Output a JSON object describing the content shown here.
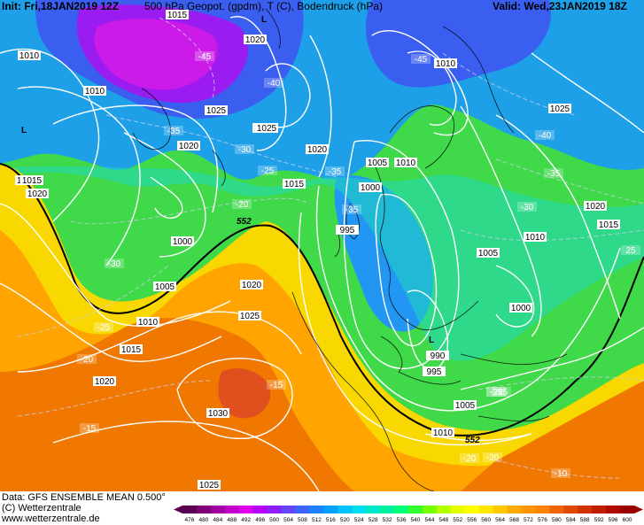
{
  "header": {
    "init": "Init: Fri,18JAN2019 12Z",
    "title": "500 hPa Geopot. (gpdm), T (C), Bodendruck (hPa)",
    "valid": "Valid: Wed,23JAN2019 18Z"
  },
  "map": {
    "pressure_labels": [
      "1015",
      "1020",
      "1010",
      "1015",
      "1020",
      "1010",
      "1025",
      "1005",
      "1020",
      "1015",
      "1000",
      "1005",
      "1010",
      "1015",
      "1020",
      "1025",
      "1030",
      "1025",
      "1005",
      "1010",
      "1000",
      "995",
      "1010",
      "1025",
      "1020",
      "1015",
      "1010",
      "1005",
      "1000",
      "990",
      "995",
      "1005",
      "1010",
      "1020",
      "1015",
      "1025",
      "1020"
    ],
    "temp_labels": [
      "-45",
      "-40",
      "-45",
      "-35",
      "-30",
      "-25",
      "-20",
      "-35",
      "-35",
      "-30",
      "-40",
      "-35",
      "-30",
      "-25",
      "-25",
      "-20",
      "-20",
      "-15",
      "-15",
      "-20",
      "-10",
      "-25",
      "-25",
      "25"
    ],
    "geopot_labels": [
      "552",
      "552"
    ],
    "low_markers": [
      "L",
      "L",
      "L"
    ]
  },
  "footer": {
    "data_source": "Data: GFS ENSEMBLE MEAN 0.500°",
    "copyright": "(C) Wetterzentrale",
    "url": "www.wetterzentrale.de"
  },
  "colorbar": {
    "ticks": [
      "476",
      "480",
      "484",
      "488",
      "492",
      "496",
      "500",
      "504",
      "508",
      "512",
      "516",
      "520",
      "524",
      "528",
      "532",
      "536",
      "540",
      "544",
      "548",
      "552",
      "556",
      "560",
      "564",
      "568",
      "572",
      "576",
      "580",
      "584",
      "588",
      "592",
      "596",
      "600"
    ],
    "colors": [
      "#5a0050",
      "#800078",
      "#a000a0",
      "#c000c8",
      "#e000f0",
      "#b400ff",
      "#8c1eff",
      "#6446ff",
      "#3c64ff",
      "#1e82ff",
      "#00a0ff",
      "#00c3ff",
      "#00dcf0",
      "#00e6c8",
      "#00f0a0",
      "#00ff78",
      "#32ff32",
      "#78ff00",
      "#b4ff00",
      "#e6ff00",
      "#ffff00",
      "#ffe600",
      "#ffc800",
      "#ffaa00",
      "#ff9600",
      "#ff8200",
      "#f06400",
      "#e04a00",
      "#d03200",
      "#c01e00",
      "#b00a00",
      "#9a0000"
    ]
  }
}
